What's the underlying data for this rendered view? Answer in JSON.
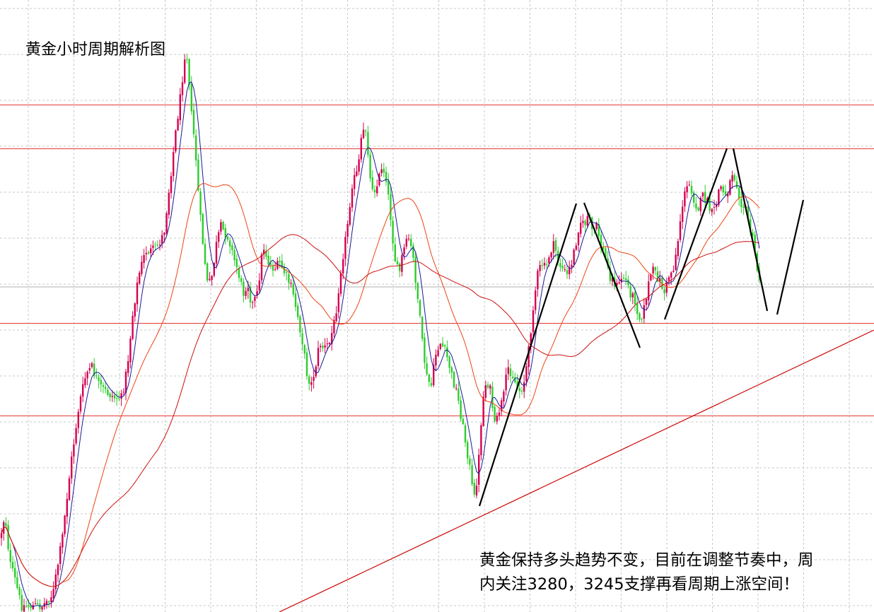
{
  "chart_data": {
    "type": "candlestick",
    "title": "黄金小时周期解析图",
    "annotation_lines": [
      "黄金保持多头趋势不变，目前在调整节奏中，周",
      "内关注3280，3245支撑再看周期上涨空间！"
    ],
    "support_levels_noted": [
      3280,
      3245
    ],
    "horizontal_levels_relative": [
      0.171,
      0.243,
      0.528,
      0.679
    ],
    "grid": true,
    "colors": {
      "bull_candle": "#d4004f",
      "bear_candle": "#2ecc2e",
      "level_line": "#e53935",
      "trend_line": "#cc0000",
      "ma_fast": "#1a1a99",
      "ma_mid": "#ee4411",
      "ma_slow": "#cc1111",
      "drawing": "#000000",
      "grid": "#c8c8c8"
    },
    "price_path": [
      [
        0,
        0.88
      ],
      [
        7,
        0.84
      ],
      [
        14,
        0.92
      ],
      [
        22,
        0.95
      ],
      [
        30,
        0.99
      ],
      [
        45,
        0.99
      ],
      [
        60,
        0.99
      ],
      [
        75,
        0.97
      ],
      [
        88,
        0.88
      ],
      [
        100,
        0.76
      ],
      [
        112,
        0.66
      ],
      [
        122,
        0.61
      ],
      [
        130,
        0.6
      ],
      [
        140,
        0.63
      ],
      [
        150,
        0.64
      ],
      [
        162,
        0.65
      ],
      [
        172,
        0.65
      ],
      [
        180,
        0.6
      ],
      [
        188,
        0.51
      ],
      [
        196,
        0.45
      ],
      [
        206,
        0.41
      ],
      [
        215,
        0.41
      ],
      [
        224,
        0.4
      ],
      [
        232,
        0.38
      ],
      [
        240,
        0.3
      ],
      [
        248,
        0.22
      ],
      [
        256,
        0.15
      ],
      [
        262,
        0.08
      ],
      [
        266,
        0.1
      ],
      [
        270,
        0.18
      ],
      [
        276,
        0.24
      ],
      [
        282,
        0.34
      ],
      [
        288,
        0.41
      ],
      [
        294,
        0.47
      ],
      [
        300,
        0.45
      ],
      [
        306,
        0.4
      ],
      [
        312,
        0.37
      ],
      [
        318,
        0.38
      ],
      [
        324,
        0.39
      ],
      [
        330,
        0.42
      ],
      [
        336,
        0.44
      ],
      [
        344,
        0.48
      ],
      [
        350,
        0.46
      ],
      [
        356,
        0.5
      ],
      [
        364,
        0.48
      ],
      [
        372,
        0.4
      ],
      [
        380,
        0.43
      ],
      [
        388,
        0.44
      ],
      [
        396,
        0.43
      ],
      [
        404,
        0.45
      ],
      [
        412,
        0.47
      ],
      [
        420,
        0.51
      ],
      [
        428,
        0.56
      ],
      [
        434,
        0.61
      ],
      [
        440,
        0.63
      ],
      [
        446,
        0.6
      ],
      [
        452,
        0.56
      ],
      [
        458,
        0.57
      ],
      [
        466,
        0.56
      ],
      [
        474,
        0.52
      ],
      [
        482,
        0.44
      ],
      [
        490,
        0.38
      ],
      [
        498,
        0.3
      ],
      [
        506,
        0.28
      ],
      [
        512,
        0.22
      ],
      [
        518,
        0.21
      ],
      [
        524,
        0.3
      ],
      [
        532,
        0.31
      ],
      [
        540,
        0.27
      ],
      [
        546,
        0.29
      ],
      [
        552,
        0.35
      ],
      [
        558,
        0.42
      ],
      [
        564,
        0.45
      ],
      [
        570,
        0.41
      ],
      [
        578,
        0.39
      ],
      [
        584,
        0.42
      ],
      [
        592,
        0.5
      ],
      [
        598,
        0.57
      ],
      [
        604,
        0.62
      ],
      [
        610,
        0.63
      ],
      [
        616,
        0.58
      ],
      [
        622,
        0.56
      ],
      [
        628,
        0.57
      ],
      [
        634,
        0.59
      ],
      [
        640,
        0.62
      ],
      [
        646,
        0.64
      ],
      [
        652,
        0.68
      ],
      [
        658,
        0.72
      ],
      [
        664,
        0.76
      ],
      [
        670,
        0.82
      ],
      [
        676,
        0.77
      ],
      [
        682,
        0.66
      ],
      [
        688,
        0.62
      ],
      [
        694,
        0.64
      ],
      [
        700,
        0.7
      ],
      [
        706,
        0.67
      ],
      [
        712,
        0.65
      ],
      [
        718,
        0.6
      ],
      [
        724,
        0.61
      ],
      [
        730,
        0.63
      ],
      [
        736,
        0.64
      ],
      [
        742,
        0.62
      ],
      [
        748,
        0.57
      ],
      [
        754,
        0.5
      ],
      [
        760,
        0.45
      ],
      [
        766,
        0.43
      ],
      [
        772,
        0.44
      ],
      [
        778,
        0.41
      ],
      [
        784,
        0.4
      ],
      [
        790,
        0.43
      ],
      [
        796,
        0.44
      ],
      [
        802,
        0.45
      ],
      [
        808,
        0.43
      ],
      [
        814,
        0.4
      ],
      [
        820,
        0.36
      ],
      [
        826,
        0.37
      ],
      [
        832,
        0.35
      ],
      [
        838,
        0.38
      ],
      [
        844,
        0.37
      ],
      [
        850,
        0.4
      ],
      [
        856,
        0.42
      ],
      [
        862,
        0.45
      ],
      [
        868,
        0.46
      ],
      [
        874,
        0.47
      ],
      [
        880,
        0.45
      ],
      [
        886,
        0.46
      ],
      [
        892,
        0.48
      ],
      [
        898,
        0.49
      ],
      [
        904,
        0.52
      ],
      [
        910,
        0.51
      ],
      [
        916,
        0.47
      ],
      [
        922,
        0.44
      ],
      [
        928,
        0.45
      ],
      [
        934,
        0.46
      ],
      [
        940,
        0.48
      ],
      [
        946,
        0.45
      ],
      [
        952,
        0.44
      ],
      [
        958,
        0.4
      ],
      [
        964,
        0.34
      ],
      [
        970,
        0.31
      ],
      [
        976,
        0.3
      ],
      [
        982,
        0.33
      ],
      [
        988,
        0.34
      ],
      [
        994,
        0.32
      ],
      [
        1000,
        0.33
      ],
      [
        1006,
        0.35
      ],
      [
        1012,
        0.34
      ],
      [
        1018,
        0.3
      ],
      [
        1024,
        0.32
      ],
      [
        1030,
        0.31
      ],
      [
        1036,
        0.28
      ],
      [
        1042,
        0.3
      ],
      [
        1048,
        0.33
      ],
      [
        1054,
        0.34
      ],
      [
        1060,
        0.37
      ],
      [
        1066,
        0.4
      ],
      [
        1072,
        0.45
      ],
      [
        1076,
        0.46
      ]
    ]
  }
}
